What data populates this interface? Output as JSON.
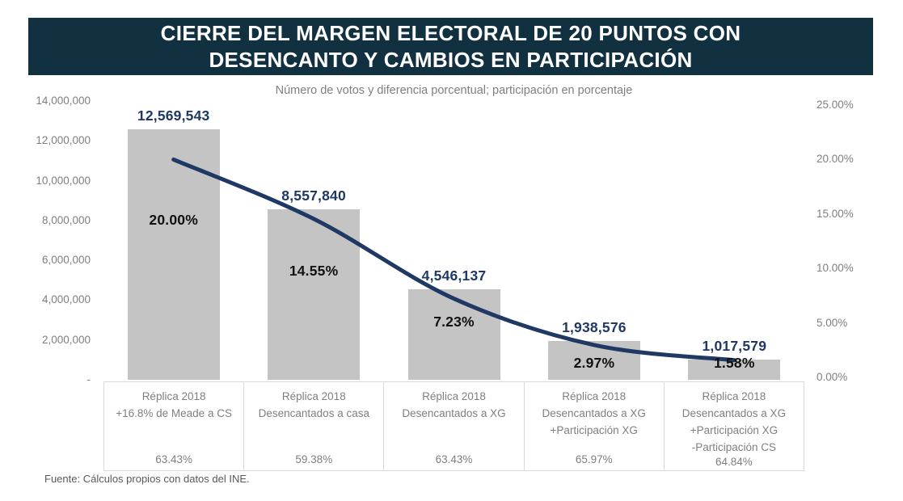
{
  "title": {
    "line1": "CIERRE DEL MARGEN ELECTORAL DE 20 PUNTOS CON",
    "line2": "DESENCANTO Y CAMBIOS EN PARTICIPACIÓN"
  },
  "subtitle": "Número de votos y diferencia porcentual; participación en porcentaje",
  "source": "Fuente: Cálculos propios con datos del INE.",
  "chart_data": {
    "type": "combo-bar-line",
    "categories": [
      [
        "Réplica 2018",
        "+16.8% de Meade a CS"
      ],
      [
        "Réplica 2018",
        "Desencantados a casa"
      ],
      [
        "Réplica 2018",
        "Desencantados a XG"
      ],
      [
        "Réplica 2018",
        "Desencantados a XG",
        "+Participación XG"
      ],
      [
        "Réplica 2018",
        "Desencantados a XG",
        "+Participación XG",
        "-Participación CS"
      ]
    ],
    "bar_series": {
      "name": "Número de votos",
      "values": [
        12569543,
        8557840,
        4546137,
        1938576,
        1017579
      ],
      "labels": [
        "12,569,543",
        "8,557,840",
        "4,546,137",
        "1,938,576",
        "1,017,579"
      ]
    },
    "line_series": {
      "name": "Diferencia porcentual",
      "values": [
        20.0,
        14.55,
        7.23,
        2.97,
        1.58
      ],
      "labels": [
        "20.00%",
        "14.55%",
        "7.23%",
        "2.97%",
        "1.58%"
      ]
    },
    "participation": [
      "63.43%",
      "59.38%",
      "63.43%",
      "65.97%",
      "64.84%"
    ],
    "left_axis": {
      "min": 0,
      "max": 14000000,
      "ticks": [
        "14,000,000",
        "12,000,000",
        "10,000,000",
        "8,000,000",
        "6,000,000",
        "4,000,000",
        "2,000,000",
        "-"
      ],
      "values": [
        14000000,
        12000000,
        10000000,
        8000000,
        6000000,
        4000000,
        2000000,
        0
      ]
    },
    "right_axis": {
      "min": 0,
      "max": 25,
      "ticks": [
        "25.00%",
        "20.00%",
        "15.00%",
        "10.00%",
        "5.00%",
        "0.00%"
      ],
      "values": [
        25,
        20,
        15,
        10,
        5,
        0
      ]
    },
    "grid": false,
    "legend": "none",
    "colors": {
      "title_bg": "#123140",
      "title_text": "#ffffff",
      "bar_fill": "#c4c4c4",
      "line": "#1f3864",
      "bar_label": "#1f3864",
      "pct_label": "#111111",
      "axis_text": "#7f7f7f",
      "subtitle_text": "#7f7f7f",
      "category_text": "#7f7f7f",
      "table_border": "#d9d9d9",
      "source_text": "#595959"
    }
  }
}
